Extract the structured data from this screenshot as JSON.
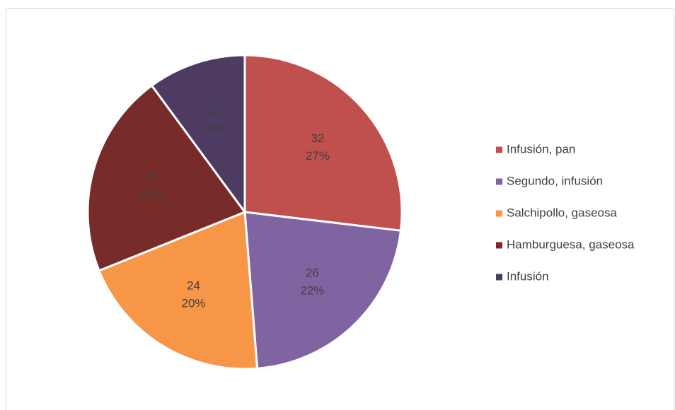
{
  "chart_data": {
    "type": "pie",
    "categories": [
      "Infusión, pan",
      "Segundo, infusión",
      "Salchipollo, gaseosa",
      "Hamburguesa, gaseosa",
      "Infusión"
    ],
    "values": [
      32,
      26,
      24,
      25,
      12
    ],
    "percent_labels": [
      "27%",
      "22%",
      "20%",
      "21%",
      "10%"
    ],
    "colors": [
      "#c0504d",
      "#8064a2",
      "#f79646",
      "#772c2a",
      "#4d3b62"
    ],
    "legend": "right"
  }
}
